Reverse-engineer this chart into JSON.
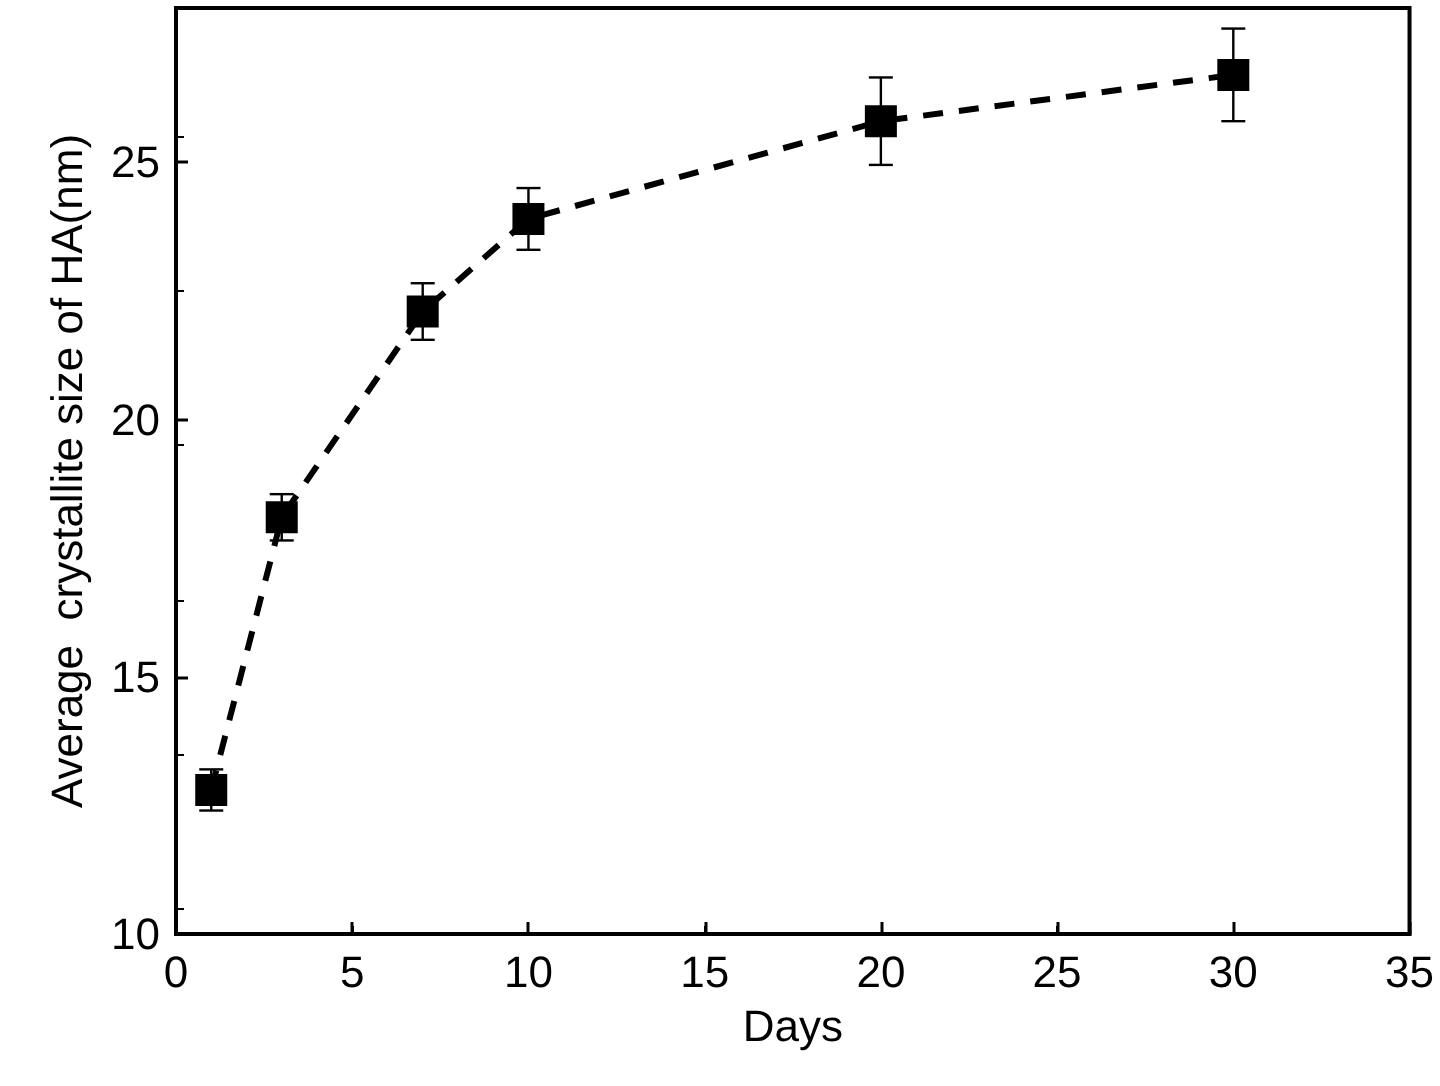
{
  "chart_data": {
    "type": "line",
    "xlabel": "Days",
    "ylabel": "Average  crystallite size of HA(nm)",
    "x": [
      1,
      3,
      7,
      10,
      20,
      30
    ],
    "series": [
      {
        "color": "#000000",
        "values": [
          12.8,
          18.1,
          22.1,
          23.9,
          25.8,
          26.7
        ],
        "errors": [
          0.4,
          0.45,
          0.55,
          0.6,
          0.85,
          0.9
        ]
      }
    ],
    "xlim": [
      0,
      35
    ],
    "xticks": [
      0,
      5,
      10,
      15,
      20,
      25,
      30,
      35
    ],
    "ylim": [
      10,
      28
    ],
    "yticks": [
      10,
      15,
      20,
      25
    ],
    "marker": "square",
    "line_style": "dashed"
  }
}
